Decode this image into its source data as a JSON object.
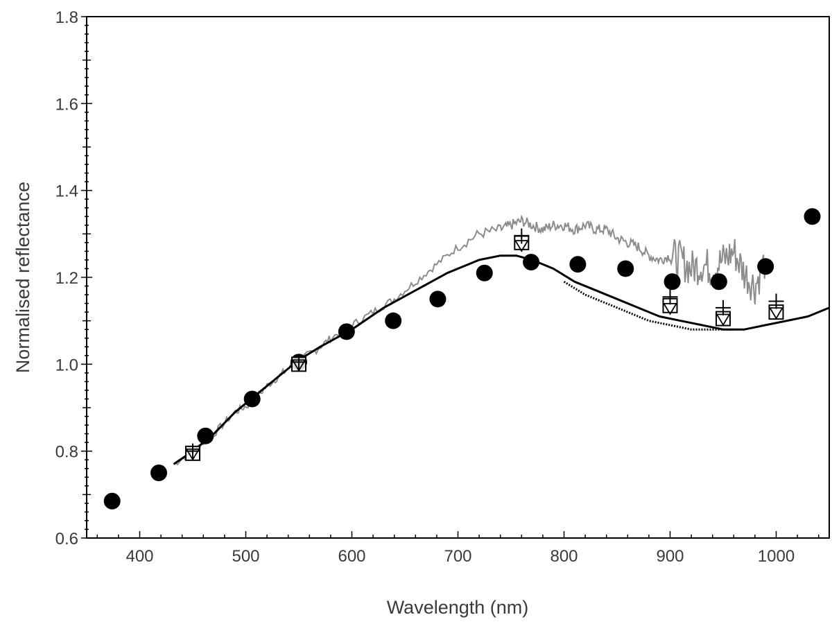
{
  "chart_data": {
    "type": "line",
    "title": "",
    "xlabel": "Wavelength (nm)",
    "ylabel": "Normalised reflectance",
    "xlim": [
      350,
      1050
    ],
    "ylim": [
      0.6,
      1.8
    ],
    "x_ticks": [
      400,
      500,
      600,
      700,
      800,
      900,
      1000
    ],
    "x_tick_labels": [
      "400",
      "500",
      "600",
      "700",
      "800",
      "900",
      "1000"
    ],
    "y_ticks": [
      0.6,
      0.8,
      1.0,
      1.2,
      1.4,
      1.6,
      1.8
    ],
    "y_tick_labels": [
      "0.6",
      "0.8",
      "1.0",
      "1.2",
      "1.4",
      "1.6",
      "1.8"
    ],
    "grid": false,
    "series": [
      {
        "name": "Spectrum (grey)",
        "kind": "noisy-line",
        "color": "#8c8c8c",
        "x": [
          432,
          450,
          470,
          490,
          505,
          520,
          535,
          550,
          565,
          580,
          600,
          620,
          640,
          660,
          680,
          700,
          720,
          740,
          750,
          760,
          770,
          780,
          790,
          800,
          810,
          820,
          830,
          840,
          850,
          860,
          870,
          880,
          890,
          900,
          910,
          920,
          930,
          940,
          950,
          960,
          970,
          980,
          990
        ],
        "y": [
          0.77,
          0.8,
          0.84,
          0.89,
          0.91,
          0.95,
          0.98,
          1.01,
          1.03,
          1.06,
          1.09,
          1.12,
          1.15,
          1.19,
          1.23,
          1.27,
          1.3,
          1.31,
          1.32,
          1.33,
          1.32,
          1.31,
          1.32,
          1.32,
          1.31,
          1.32,
          1.31,
          1.31,
          1.29,
          1.28,
          1.27,
          1.25,
          1.24,
          1.25,
          1.24,
          1.22,
          1.23,
          1.22,
          1.24,
          1.26,
          1.21,
          1.18,
          1.24
        ]
      },
      {
        "name": "Model (black)",
        "kind": "line",
        "color": "#000000",
        "x": [
          432,
          450,
          470,
          490,
          510,
          530,
          550,
          570,
          600,
          630,
          660,
          690,
          720,
          740,
          755,
          770,
          790,
          810,
          830,
          850,
          870,
          890,
          910,
          930,
          950,
          970,
          990,
          1010,
          1030,
          1050
        ],
        "y": [
          0.77,
          0.8,
          0.84,
          0.89,
          0.93,
          0.97,
          1.01,
          1.04,
          1.08,
          1.13,
          1.17,
          1.21,
          1.24,
          1.25,
          1.25,
          1.24,
          1.22,
          1.19,
          1.17,
          1.15,
          1.13,
          1.11,
          1.1,
          1.09,
          1.08,
          1.08,
          1.09,
          1.1,
          1.11,
          1.13
        ]
      },
      {
        "name": "Model (dotted)",
        "kind": "dotted-line",
        "color": "#000000",
        "x": [
          800,
          820,
          840,
          860,
          880,
          900,
          920,
          940,
          960
        ],
        "y": [
          1.19,
          1.16,
          1.14,
          1.12,
          1.1,
          1.09,
          1.08,
          1.08,
          1.08
        ]
      },
      {
        "name": "Filled circles",
        "kind": "scatter",
        "marker": "filled-circle",
        "x": [
          374,
          418,
          462,
          506,
          550,
          595,
          639,
          681,
          725,
          769,
          813,
          858,
          902,
          946,
          990,
          1034
        ],
        "y": [
          0.685,
          0.75,
          0.835,
          0.92,
          1.005,
          1.075,
          1.1,
          1.15,
          1.21,
          1.235,
          1.23,
          1.22,
          1.19,
          1.19,
          1.225,
          1.34
        ]
      },
      {
        "name": "Open squares",
        "kind": "scatter",
        "marker": "open-square",
        "x": [
          450,
          550,
          760,
          900,
          950,
          1000
        ],
        "y": [
          0.795,
          1.0,
          1.28,
          1.135,
          1.105,
          1.12
        ]
      },
      {
        "name": "Plus markers",
        "kind": "scatter",
        "marker": "plus",
        "x": [
          450,
          550,
          760,
          900,
          950,
          1000
        ],
        "y": [
          0.8,
          1.005,
          1.295,
          1.155,
          1.13,
          1.145
        ]
      },
      {
        "name": "Open triangles",
        "kind": "scatter",
        "marker": "open-triangle-down",
        "x": [
          450,
          550,
          760,
          900,
          950,
          1000
        ],
        "y": [
          0.795,
          1.0,
          1.275,
          1.13,
          1.105,
          1.12
        ]
      }
    ]
  }
}
